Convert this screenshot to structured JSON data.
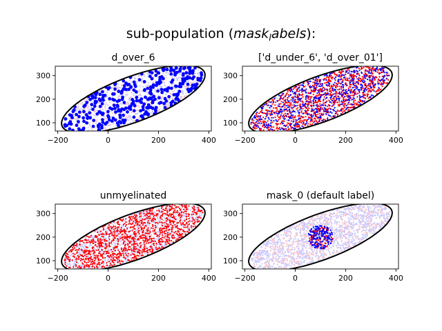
{
  "figure": {
    "suptitle_prefix": "sub-population (",
    "suptitle_math": "mask",
    "suptitle_sub": "l",
    "suptitle_math2": "abels",
    "suptitle_suffix": "):"
  },
  "colors": {
    "blue": "#0000ff",
    "red": "#ff0000",
    "faint_blue": "#c7c7ff",
    "faint_red": "#ffc7c7",
    "ellipse": "#000000"
  },
  "chart_data": [
    {
      "type": "scatter",
      "title": "d_over_6",
      "xlabel": "",
      "ylabel": "",
      "xlim": [
        -210,
        410
      ],
      "ylim": [
        65,
        340
      ],
      "xticks": [
        -200,
        0,
        200,
        400
      ],
      "yticks": [
        100,
        200,
        300
      ],
      "grid": false,
      "ellipse": {
        "center": [
          100,
          200
        ],
        "semi_major": 305,
        "semi_minor": 95,
        "angle_deg": 22
      },
      "background": [
        {
          "name": "",
          "color": "#c7c7ff",
          "count": 650,
          "region": "ellipse"
        },
        {
          "name": "",
          "color": "#ffc7c7",
          "count": 350,
          "region": "ellipse"
        }
      ],
      "highlight": [
        {
          "name": "",
          "color": "#0000ff",
          "count": 330,
          "region": "ellipse",
          "marker_size": "large"
        }
      ]
    },
    {
      "type": "scatter",
      "title": "['d_under_6', 'd_over_01']",
      "xlabel": "",
      "ylabel": "",
      "xlim": [
        -210,
        410
      ],
      "ylim": [
        65,
        340
      ],
      "xticks": [
        -200,
        0,
        200,
        400
      ],
      "yticks": [
        100,
        200,
        300
      ],
      "grid": false,
      "ellipse": {
        "center": [
          100,
          200
        ],
        "semi_major": 305,
        "semi_minor": 95,
        "angle_deg": 22
      },
      "background": [
        {
          "name": "",
          "color": "#c7c7ff",
          "count": 250,
          "region": "ellipse"
        }
      ],
      "highlight": [
        {
          "name": "",
          "color": "#ff0000",
          "count": 1100,
          "region": "ellipse",
          "marker_size": "small"
        },
        {
          "name": "",
          "color": "#0000ff",
          "count": 650,
          "region": "ellipse",
          "marker_size": "small"
        }
      ]
    },
    {
      "type": "scatter",
      "title": "unmyelinated",
      "xlabel": "",
      "ylabel": "",
      "xlim": [
        -210,
        410
      ],
      "ylim": [
        65,
        340
      ],
      "xticks": [
        -200,
        0,
        200,
        400
      ],
      "yticks": [
        100,
        200,
        300
      ],
      "grid": false,
      "ellipse": {
        "center": [
          100,
          200
        ],
        "semi_major": 305,
        "semi_minor": 95,
        "angle_deg": 22
      },
      "background": [
        {
          "name": "",
          "color": "#c7c7ff",
          "count": 1200,
          "region": "ellipse"
        }
      ],
      "highlight": [
        {
          "name": "",
          "color": "#ff0000",
          "count": 1250,
          "region": "ellipse",
          "marker_size": "small"
        }
      ]
    },
    {
      "type": "scatter",
      "title": "mask_0 (default label)",
      "xlabel": "",
      "ylabel": "",
      "xlim": [
        -210,
        410
      ],
      "ylim": [
        65,
        340
      ],
      "xticks": [
        -200,
        0,
        200,
        400
      ],
      "yticks": [
        100,
        200,
        300
      ],
      "grid": false,
      "ellipse": {
        "center": [
          100,
          200
        ],
        "semi_major": 305,
        "semi_minor": 95,
        "angle_deg": 22
      },
      "background": [
        {
          "name": "",
          "color": "#c7c7ff",
          "count": 1400,
          "region": "ellipse"
        },
        {
          "name": "",
          "color": "#ffc7c7",
          "count": 450,
          "region": "ellipse"
        }
      ],
      "highlight": [
        {
          "name": "",
          "color": "#ff0000",
          "count": 110,
          "region": "disk",
          "disk_center": [
            100,
            200
          ],
          "disk_radius": 50,
          "marker_size": "small"
        },
        {
          "name": "",
          "color": "#0000ff",
          "count": 170,
          "region": "disk",
          "disk_center": [
            100,
            200
          ],
          "disk_radius": 50,
          "marker_size": "small"
        }
      ]
    }
  ]
}
